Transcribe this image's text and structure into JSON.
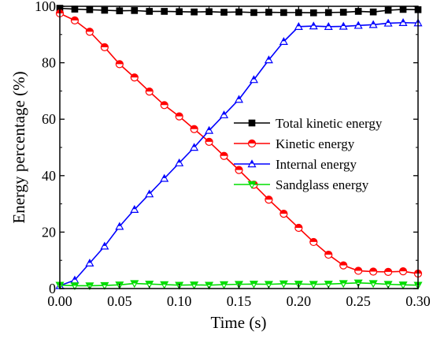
{
  "chart_data": {
    "type": "line",
    "title": "",
    "xlabel": "Time (s)",
    "ylabel": "Energy percentage (%)",
    "xlim": [
      0,
      0.3
    ],
    "ylim": [
      0,
      100
    ],
    "xticks": [
      0.0,
      0.05,
      0.1,
      0.15,
      0.2,
      0.25,
      0.3
    ],
    "yticks": [
      0,
      20,
      40,
      60,
      80,
      100
    ],
    "xtick_labels": [
      "0.00",
      "0.05",
      "0.10",
      "0.15",
      "0.20",
      "0.25",
      "0.30"
    ],
    "ytick_labels": [
      "0",
      "20",
      "40",
      "60",
      "80",
      "100"
    ],
    "grid": false,
    "legend_position": "center-right",
    "series": [
      {
        "name": "Total kinetic energy",
        "color": "#000000",
        "marker": "square-filled",
        "x": [
          0.0,
          0.0125,
          0.025,
          0.0375,
          0.05,
          0.0625,
          0.075,
          0.0875,
          0.1,
          0.1125,
          0.125,
          0.1375,
          0.15,
          0.1625,
          0.175,
          0.1875,
          0.2,
          0.2125,
          0.225,
          0.2375,
          0.25,
          0.2625,
          0.275,
          0.2875,
          0.3
        ],
        "values": [
          99.3,
          99.0,
          98.8,
          98.6,
          98.4,
          98.5,
          98.2,
          98.2,
          98.1,
          98.0,
          98.1,
          97.9,
          98.0,
          97.8,
          97.9,
          97.8,
          97.8,
          97.7,
          97.8,
          97.9,
          98.2,
          98.0,
          98.6,
          98.9,
          98.8
        ]
      },
      {
        "name": "Kinetic energy",
        "color": "#ff0000",
        "marker": "circle-half",
        "x": [
          0.0,
          0.0125,
          0.025,
          0.0375,
          0.05,
          0.0625,
          0.075,
          0.0875,
          0.1,
          0.1125,
          0.125,
          0.1375,
          0.15,
          0.1625,
          0.175,
          0.1875,
          0.2,
          0.2125,
          0.225,
          0.2375,
          0.25,
          0.2625,
          0.275,
          0.2875,
          0.3
        ],
        "values": [
          97.5,
          95.0,
          91.0,
          85.5,
          79.5,
          74.8,
          69.8,
          65.0,
          61.0,
          56.5,
          52.0,
          47.0,
          42.0,
          36.8,
          31.5,
          26.5,
          21.5,
          16.5,
          12.0,
          8.2,
          6.3,
          6.0,
          5.9,
          6.1,
          5.3
        ]
      },
      {
        "name": "Internal energy",
        "color": "#0000ff",
        "marker": "triangle-up-half",
        "x": [
          0.0,
          0.0125,
          0.025,
          0.0375,
          0.05,
          0.0625,
          0.075,
          0.0875,
          0.1,
          0.1125,
          0.125,
          0.1375,
          0.15,
          0.1625,
          0.175,
          0.1875,
          0.2,
          0.2125,
          0.225,
          0.2375,
          0.25,
          0.2625,
          0.275,
          0.2875,
          0.3
        ],
        "values": [
          1.0,
          3.0,
          9.0,
          15.0,
          22.0,
          28.0,
          33.5,
          39.0,
          44.5,
          50.0,
          56.0,
          61.5,
          67.0,
          74.0,
          81.0,
          87.5,
          92.8,
          93.0,
          92.8,
          92.9,
          93.2,
          93.5,
          94.0,
          94.2,
          94.1
        ]
      },
      {
        "name": "Sandglass energy",
        "color": "#00dd00",
        "marker": "triangle-down-half",
        "x": [
          0.0,
          0.0125,
          0.025,
          0.0375,
          0.05,
          0.0625,
          0.075,
          0.0875,
          0.1,
          0.1125,
          0.125,
          0.1375,
          0.15,
          0.1625,
          0.175,
          0.1875,
          0.2,
          0.2125,
          0.225,
          0.2375,
          0.25,
          0.2625,
          0.275,
          0.2875,
          0.3
        ],
        "values": [
          1.2,
          1.0,
          1.0,
          1.1,
          1.3,
          1.8,
          1.6,
          1.4,
          1.2,
          1.3,
          1.2,
          1.4,
          1.5,
          1.6,
          1.5,
          1.7,
          1.6,
          1.5,
          1.6,
          1.8,
          2.0,
          1.8,
          1.5,
          1.3,
          1.2
        ]
      }
    ]
  }
}
